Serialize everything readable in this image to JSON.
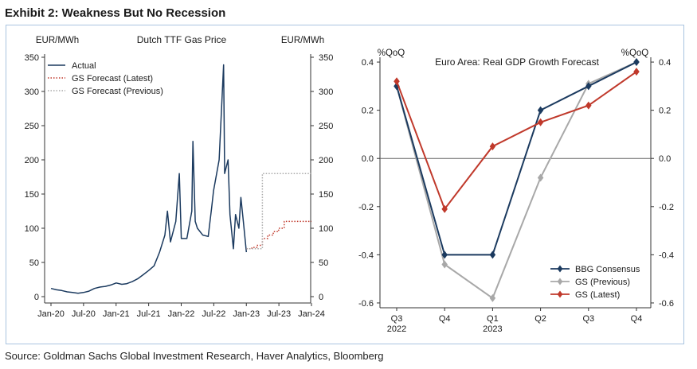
{
  "exhibit_title": "Exhibit 2: Weakness But No Recession",
  "source": "Source: Goldman Sachs Global Investment Research, Haver Analytics, Bloomberg",
  "colors": {
    "actual": "#1b3a5f",
    "gs_latest": "#c0392b",
    "gs_previous": "#a8a8a8",
    "bbg": "#1b3a5f",
    "frame": "#a9c4e0"
  },
  "chart_data": [
    {
      "type": "line",
      "title": "Dutch TTF Gas Price",
      "ylabel_left": "EUR/MWh",
      "ylabel_right": "EUR/MWh",
      "ylim": [
        0,
        350
      ],
      "yticks": [
        0,
        50,
        100,
        150,
        200,
        250,
        300,
        350
      ],
      "xticks": [
        "Jan-20",
        "Jul-20",
        "Jan-21",
        "Jul-21",
        "Jan-22",
        "Jul-22",
        "Jan-23",
        "Jul-23",
        "Jan-24"
      ],
      "legend_position": "top-left",
      "series": [
        {
          "name": "Actual",
          "x": [
            "2020-01",
            "2020-02",
            "2020-03",
            "2020-04",
            "2020-05",
            "2020-06",
            "2020-07",
            "2020-08",
            "2020-09",
            "2020-10",
            "2020-11",
            "2020-12",
            "2021-01",
            "2021-02",
            "2021-03",
            "2021-04",
            "2021-05",
            "2021-06",
            "2021-07",
            "2021-08",
            "2021-09",
            "2021-10",
            "2021-10-15",
            "2021-11",
            "2021-12",
            "2021-12-21",
            "2022-01",
            "2022-02",
            "2022-03",
            "2022-03-07",
            "2022-03-20",
            "2022-04",
            "2022-05",
            "2022-06",
            "2022-06-20",
            "2022-07",
            "2022-08",
            "2022-08-26",
            "2022-09",
            "2022-09-20",
            "2022-10",
            "2022-10-20",
            "2022-11",
            "2022-11-20",
            "2022-12",
            "2022-12-15",
            "2023-01"
          ],
          "values": [
            12,
            10,
            9,
            7,
            6,
            5,
            6,
            8,
            12,
            14,
            15,
            17,
            20,
            18,
            19,
            22,
            26,
            32,
            38,
            45,
            65,
            90,
            125,
            80,
            110,
            180,
            85,
            85,
            125,
            227,
            110,
            100,
            90,
            88,
            130,
            155,
            200,
            339,
            180,
            200,
            120,
            70,
            120,
            100,
            145,
            110,
            65
          ]
        },
        {
          "name": "GS Forecast (Latest)",
          "style": "dotted",
          "x": [
            "2023-01",
            "2023-02",
            "2023-03",
            "2023-04",
            "2023-05",
            "2023-06",
            "2023-07",
            "2023-08",
            "2023-09",
            "2023-10",
            "2023-11",
            "2023-12",
            "2024-01"
          ],
          "values": [
            70,
            72,
            75,
            85,
            90,
            95,
            100,
            110,
            110,
            110,
            110,
            110,
            110
          ]
        },
        {
          "name": "GS Forecast (Previous)",
          "style": "dotted",
          "x": [
            "2023-01",
            "2023-02",
            "2023-03",
            "2023-04",
            "2023-05",
            "2023-06",
            "2023-07",
            "2023-08",
            "2023-09",
            "2023-10",
            "2023-11",
            "2023-12",
            "2024-01"
          ],
          "values": [
            70,
            70,
            70,
            180,
            180,
            180,
            180,
            180,
            180,
            180,
            180,
            180,
            180
          ]
        }
      ]
    },
    {
      "type": "line",
      "title": "Euro Area: Real GDP Growth Forecast",
      "ylabel_left": "%QoQ",
      "ylabel_right": "%QoQ",
      "ylim": [
        -0.62,
        0.42
      ],
      "yticks": [
        -0.6,
        -0.4,
        -0.2,
        0.0,
        0.2,
        0.4
      ],
      "yticklabels": [
        "-0.6",
        "-0.4",
        "-0.2",
        "0.0",
        "0.2",
        "0.4"
      ],
      "categories": [
        "Q3",
        "Q4",
        "Q1",
        "Q2",
        "Q3",
        "Q4"
      ],
      "year_labels": [
        "2022",
        "",
        "2023",
        "",
        "",
        ""
      ],
      "legend_position": "bottom-right",
      "series": [
        {
          "name": "BBG Consensus",
          "values": [
            0.3,
            -0.4,
            -0.4,
            0.2,
            0.3,
            0.4
          ]
        },
        {
          "name": "GS (Previous)",
          "values": [
            0.3,
            -0.44,
            -0.58,
            -0.08,
            0.31,
            0.4
          ]
        },
        {
          "name": "GS (Latest)",
          "values": [
            0.32,
            -0.21,
            0.05,
            0.15,
            0.22,
            0.36
          ]
        }
      ]
    }
  ]
}
